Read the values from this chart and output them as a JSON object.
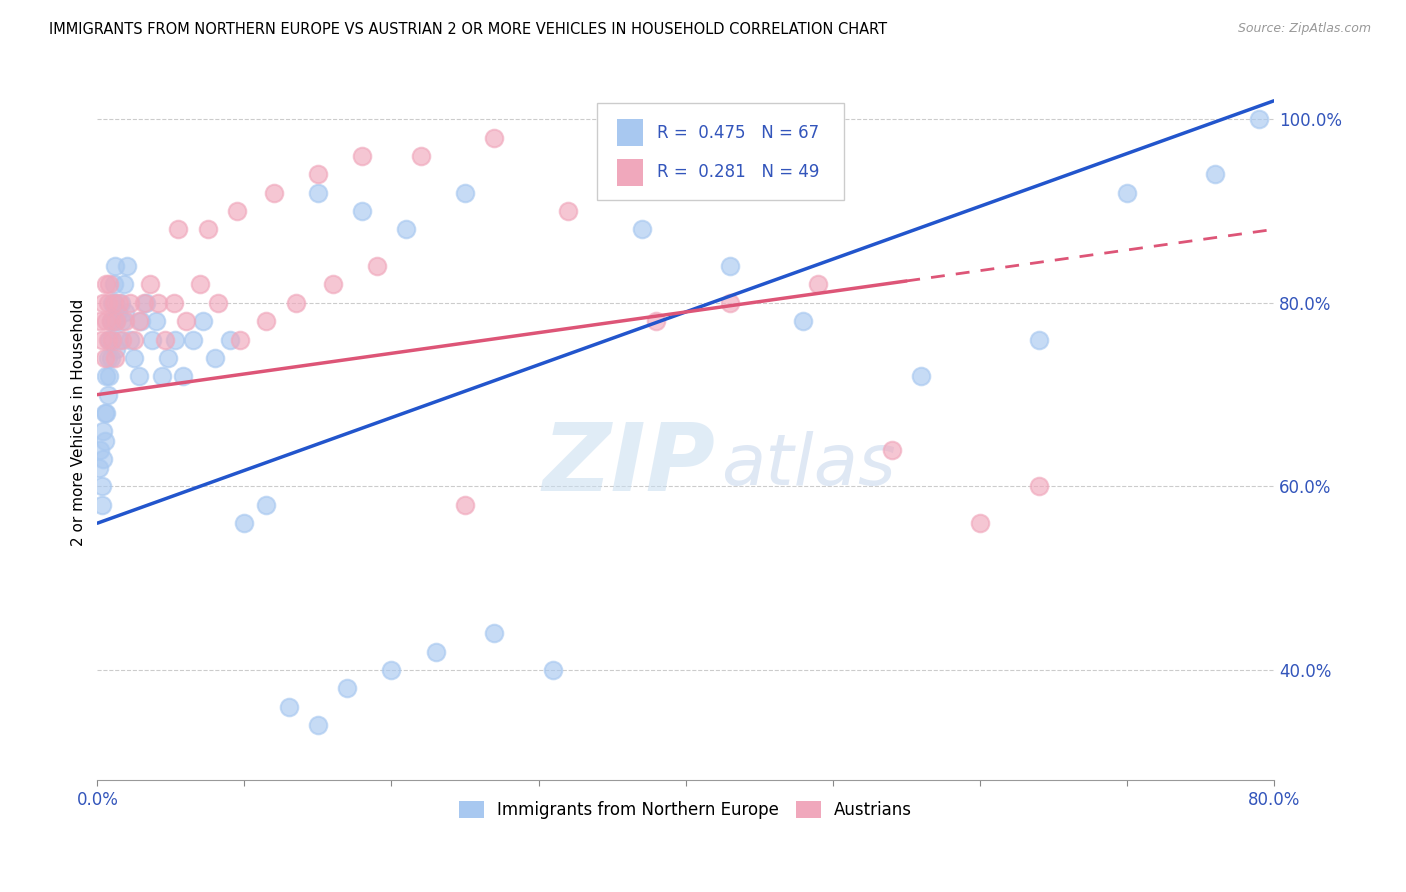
{
  "title": "IMMIGRANTS FROM NORTHERN EUROPE VS AUSTRIAN 2 OR MORE VEHICLES IN HOUSEHOLD CORRELATION CHART",
  "source": "Source: ZipAtlas.com",
  "ylabel": "2 or more Vehicles in Household",
  "xlim": [
    0.0,
    0.8
  ],
  "ylim": [
    0.28,
    1.06
  ],
  "xtick_positions": [
    0.0,
    0.1,
    0.2,
    0.3,
    0.4,
    0.5,
    0.6,
    0.7,
    0.8
  ],
  "xticklabels": [
    "0.0%",
    "",
    "",
    "",
    "",
    "",
    "",
    "",
    "80.0%"
  ],
  "ytick_positions": [
    0.4,
    0.6,
    0.8,
    1.0
  ],
  "yticklabels": [
    "40.0%",
    "60.0%",
    "80.0%",
    "100.0%"
  ],
  "legend_label1": "Immigrants from Northern Europe",
  "legend_label2": "Austrians",
  "blue_color": "#a8c8f0",
  "pink_color": "#f0a8bc",
  "blue_line_color": "#2255cc",
  "pink_line_color": "#dd5577",
  "watermark_zip": "ZIP",
  "watermark_atlas": "atlas",
  "blue_x": [
    0.001,
    0.002,
    0.003,
    0.003,
    0.004,
    0.004,
    0.005,
    0.005,
    0.006,
    0.006,
    0.007,
    0.007,
    0.008,
    0.008,
    0.009,
    0.009,
    0.01,
    0.01,
    0.011,
    0.011,
    0.012,
    0.012,
    0.013,
    0.013,
    0.014,
    0.015,
    0.016,
    0.017,
    0.018,
    0.019,
    0.02,
    0.022,
    0.025,
    0.028,
    0.03,
    0.033,
    0.037,
    0.04,
    0.044,
    0.048,
    0.053,
    0.058,
    0.065,
    0.072,
    0.08,
    0.09,
    0.1,
    0.115,
    0.13,
    0.15,
    0.17,
    0.2,
    0.23,
    0.27,
    0.31,
    0.15,
    0.18,
    0.21,
    0.25,
    0.37,
    0.43,
    0.48,
    0.56,
    0.64,
    0.7,
    0.76,
    0.79
  ],
  "blue_y": [
    0.62,
    0.64,
    0.6,
    0.58,
    0.66,
    0.63,
    0.68,
    0.65,
    0.72,
    0.68,
    0.74,
    0.7,
    0.76,
    0.72,
    0.78,
    0.74,
    0.8,
    0.76,
    0.82,
    0.78,
    0.84,
    0.8,
    0.78,
    0.75,
    0.79,
    0.76,
    0.8,
    0.78,
    0.82,
    0.79,
    0.84,
    0.76,
    0.74,
    0.72,
    0.78,
    0.8,
    0.76,
    0.78,
    0.72,
    0.74,
    0.76,
    0.72,
    0.76,
    0.78,
    0.74,
    0.76,
    0.56,
    0.58,
    0.36,
    0.34,
    0.38,
    0.4,
    0.42,
    0.44,
    0.4,
    0.92,
    0.9,
    0.88,
    0.92,
    0.88,
    0.84,
    0.78,
    0.72,
    0.76,
    0.92,
    0.94,
    1.0
  ],
  "pink_x": [
    0.002,
    0.003,
    0.004,
    0.005,
    0.006,
    0.006,
    0.007,
    0.007,
    0.008,
    0.009,
    0.01,
    0.011,
    0.012,
    0.013,
    0.015,
    0.017,
    0.019,
    0.022,
    0.025,
    0.028,
    0.032,
    0.036,
    0.041,
    0.046,
    0.052,
    0.06,
    0.07,
    0.082,
    0.097,
    0.115,
    0.135,
    0.16,
    0.19,
    0.055,
    0.075,
    0.095,
    0.12,
    0.15,
    0.18,
    0.22,
    0.27,
    0.32,
    0.25,
    0.38,
    0.43,
    0.49,
    0.54,
    0.6,
    0.64
  ],
  "pink_y": [
    0.78,
    0.76,
    0.8,
    0.74,
    0.82,
    0.78,
    0.8,
    0.76,
    0.82,
    0.78,
    0.76,
    0.8,
    0.74,
    0.78,
    0.8,
    0.76,
    0.78,
    0.8,
    0.76,
    0.78,
    0.8,
    0.82,
    0.8,
    0.76,
    0.8,
    0.78,
    0.82,
    0.8,
    0.76,
    0.78,
    0.8,
    0.82,
    0.84,
    0.88,
    0.88,
    0.9,
    0.92,
    0.94,
    0.96,
    0.96,
    0.98,
    0.9,
    0.58,
    0.78,
    0.8,
    0.82,
    0.64,
    0.56,
    0.6
  ],
  "blue_line_x0": 0.0,
  "blue_line_y0": 0.56,
  "blue_line_x1": 0.8,
  "blue_line_y1": 1.02,
  "pink_line_x0": 0.0,
  "pink_line_y0": 0.7,
  "pink_line_x1": 0.8,
  "pink_line_y1": 0.88
}
